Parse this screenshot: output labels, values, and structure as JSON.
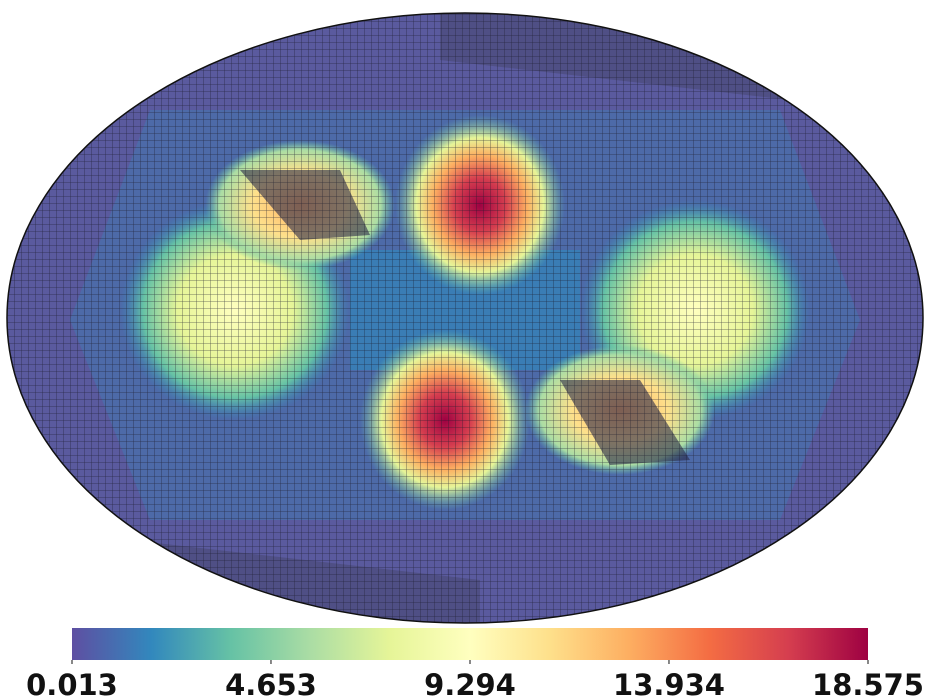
{
  "chart_data": {
    "type": "colormap",
    "xlim": [
      0.013,
      18.575
    ],
    "xticks": [
      0.013,
      4.653,
      9.294,
      13.934,
      18.575
    ],
    "colormap": [
      "#5e4fa2",
      "#3288bd",
      "#66c2a5",
      "#abdda4",
      "#e6f598",
      "#ffffbf",
      "#fee08b",
      "#fdae61",
      "#f46d43",
      "#d53e4f",
      "#9e0142"
    ]
  }
}
